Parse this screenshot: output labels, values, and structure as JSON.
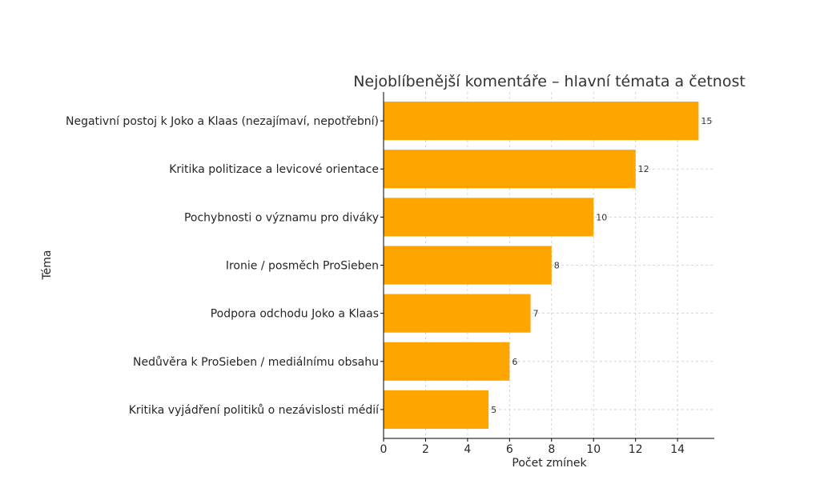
{
  "chart_data": {
    "type": "bar",
    "orientation": "horizontal",
    "title": "Nejoblíbenější komentáře – hlavní témata a četnost",
    "xlabel": "Počet zmínek",
    "ylabel": "Téma",
    "categories": [
      "Negativní postoj k Joko a Klaas (nezajímaví, nepotřební)",
      "Kritika politizace a levicové orientace",
      "Pochybnosti o významu pro diváky",
      "Ironie / posměch ProSieben",
      "Podpora odchodu Joko a Klaas",
      "Nedůvěra k ProSieben / mediálnímu obsahu",
      "Kritika vyjádření politiků o nezávislosti médií"
    ],
    "values": [
      15,
      12,
      10,
      8,
      7,
      6,
      5
    ],
    "value_labels": [
      "15",
      "12",
      "10",
      "8",
      "7",
      "6",
      "5"
    ],
    "xlim": [
      0,
      15.75
    ],
    "xticks": [
      0,
      2,
      4,
      6,
      8,
      10,
      12,
      14
    ],
    "xtick_labels": [
      "0",
      "2",
      "4",
      "6",
      "8",
      "10",
      "12",
      "14"
    ],
    "bar_color": "#FFA500",
    "grid": true
  }
}
